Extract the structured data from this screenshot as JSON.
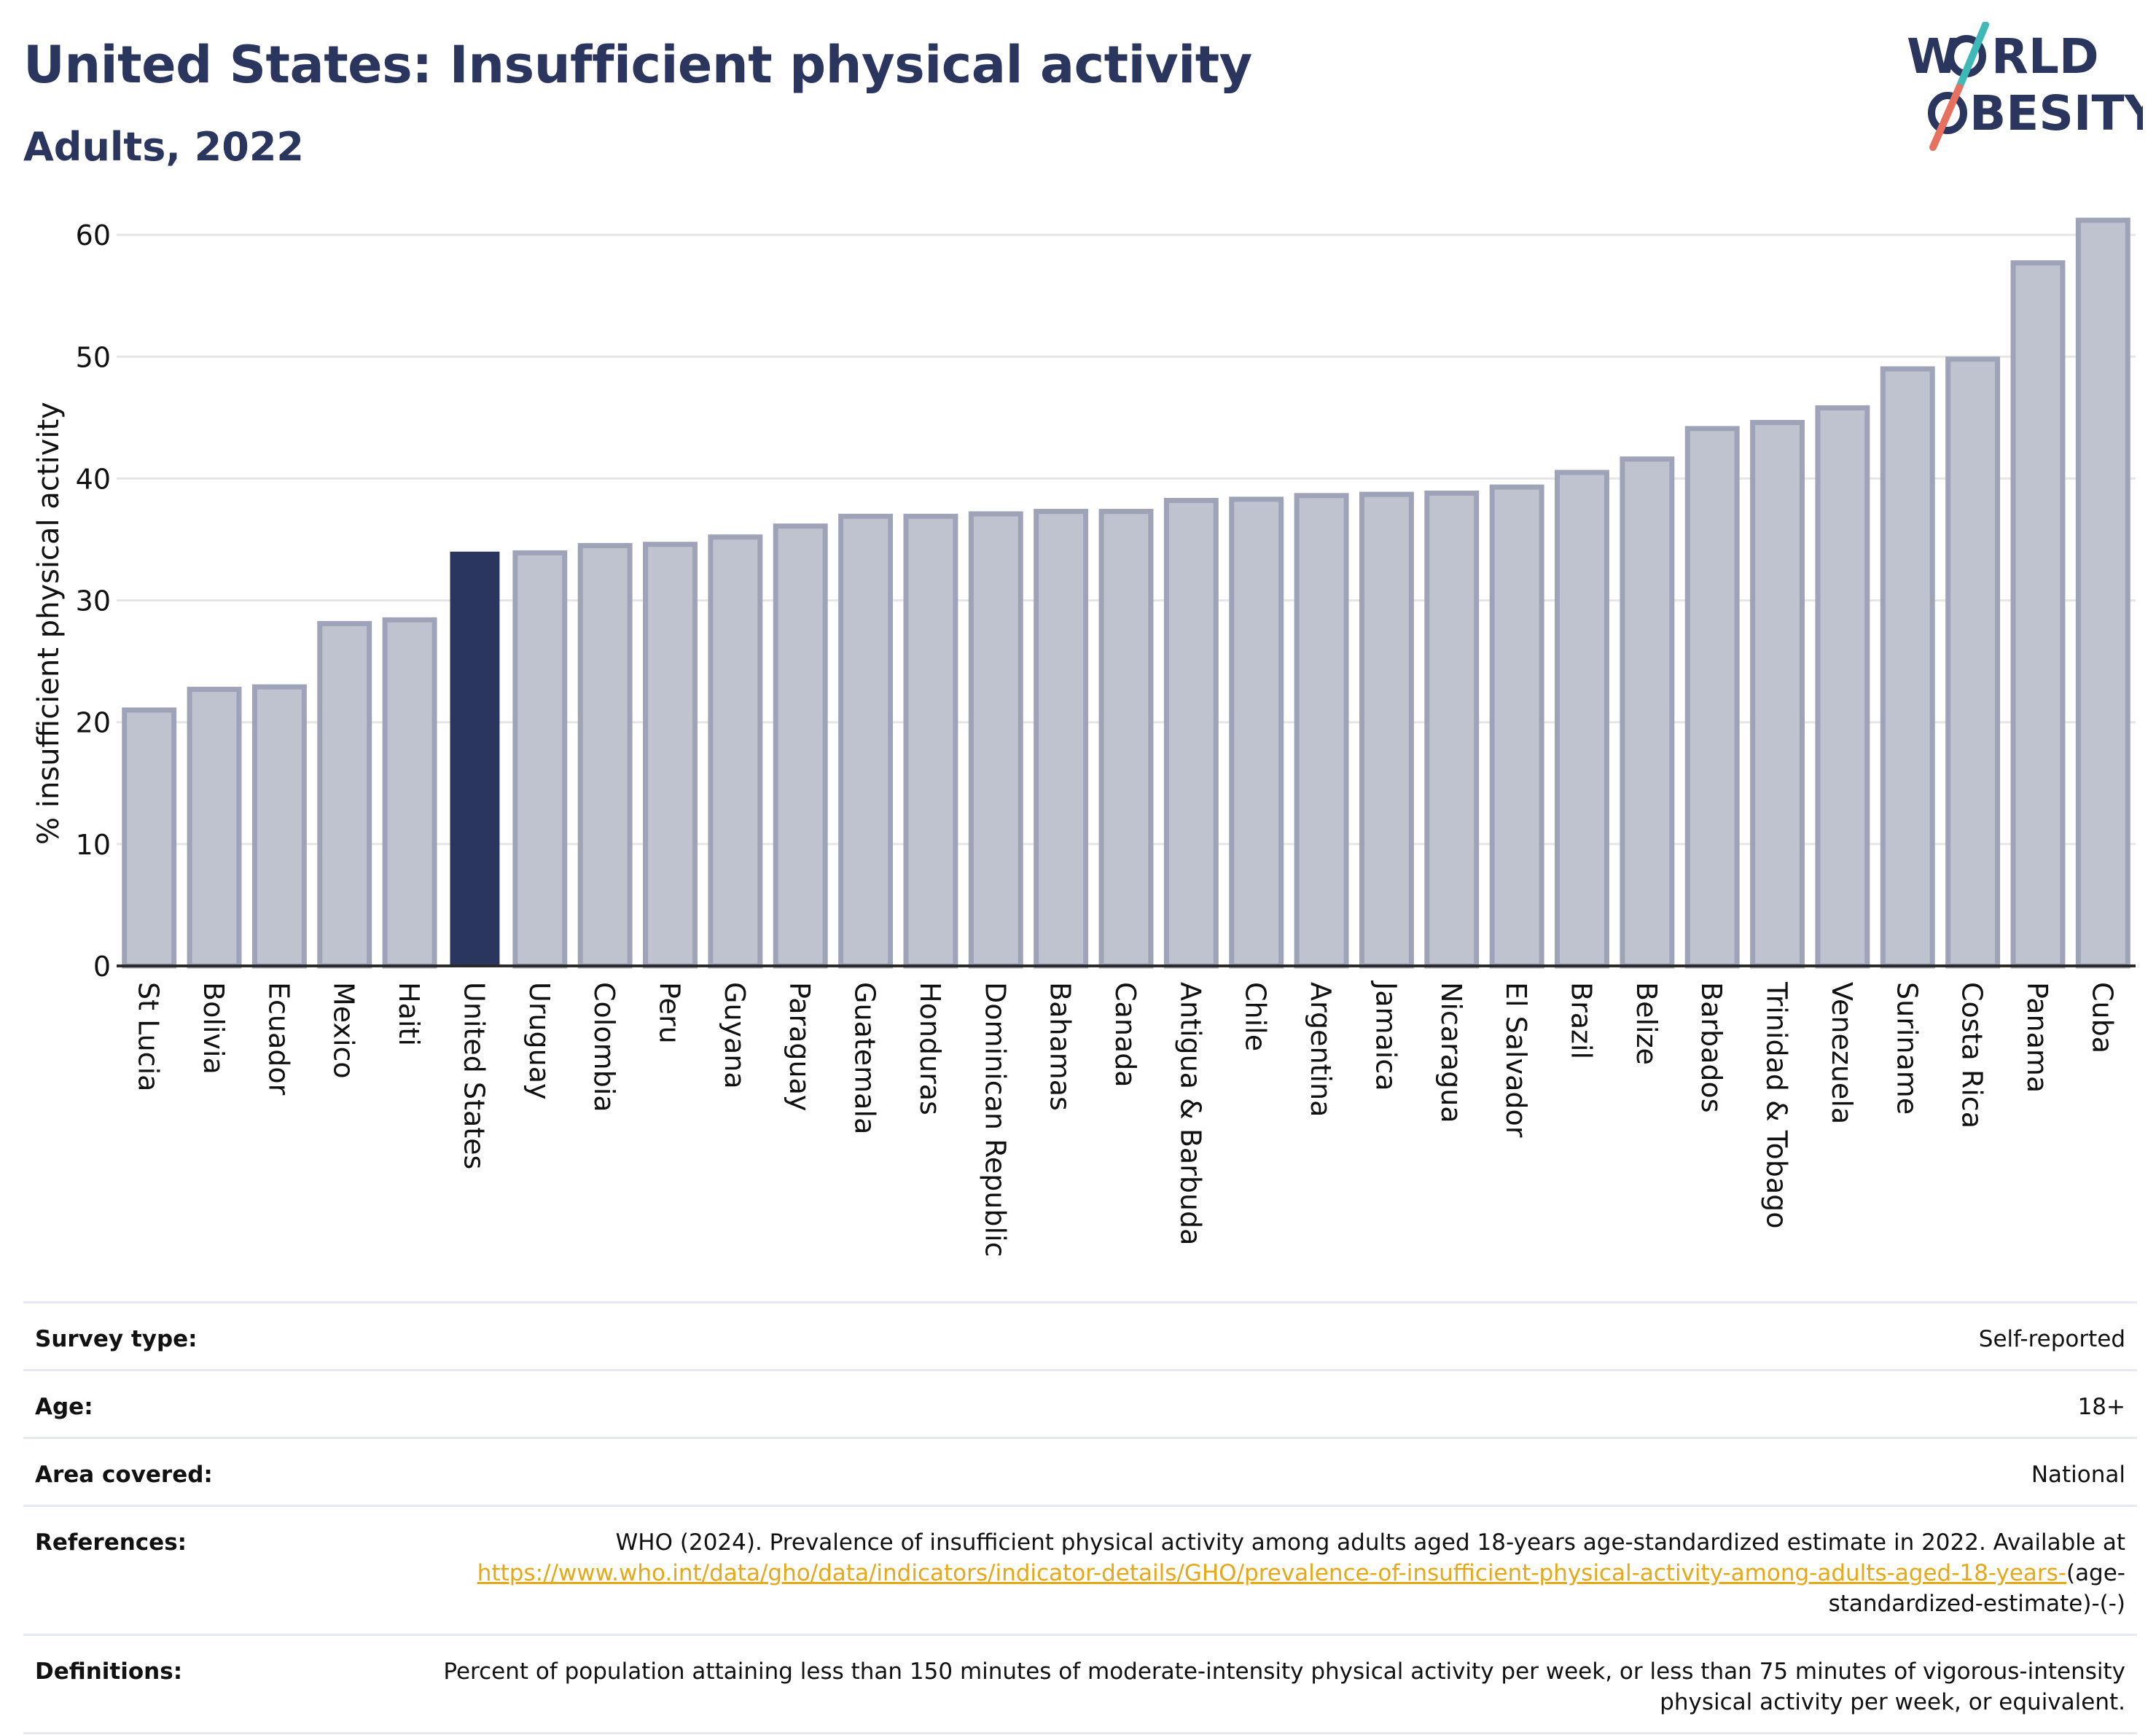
{
  "header": {
    "title": "United States: Insufficient physical activity",
    "subtitle": "Adults, 2022"
  },
  "logo": {
    "line1_left": "W",
    "line1_right": "RLD",
    "line2": "BESITY",
    "colors": {
      "text": "#2b365e",
      "slash_top": "#3fb8b8",
      "slash_bottom": "#e8705e"
    }
  },
  "chart_data": {
    "type": "bar",
    "ylabel": "% insufficient physical activity",
    "ylim": [
      0,
      63
    ],
    "yticks": [
      0,
      10,
      20,
      30,
      40,
      50,
      60
    ],
    "grid": true,
    "highlight": "United States",
    "colors": {
      "bar": "#bfc2cf",
      "bar_edge": "#9ea3b8",
      "highlight": "#2b365e"
    },
    "categories": [
      "St Lucia",
      "Bolivia",
      "Ecuador",
      "Mexico",
      "Haiti",
      "United States",
      "Uruguay",
      "Colombia",
      "Peru",
      "Guyana",
      "Paraguay",
      "Guatemala",
      "Honduras",
      "Dominican Republic",
      "Bahamas",
      "Canada",
      "Antigua & Barbuda",
      "Chile",
      "Argentina",
      "Jamaica",
      "Nicaragua",
      "El Salvador",
      "Brazil",
      "Belize",
      "Barbados",
      "Trinidad & Tobago",
      "Venezuela",
      "Suriname",
      "Costa Rica",
      "Panama",
      "Cuba"
    ],
    "values": [
      21.0,
      22.7,
      22.9,
      28.1,
      28.4,
      34.0,
      33.9,
      34.5,
      34.6,
      35.2,
      36.1,
      36.9,
      36.9,
      37.1,
      37.3,
      37.3,
      38.2,
      38.3,
      38.6,
      38.7,
      38.8,
      39.3,
      40.5,
      41.6,
      44.1,
      44.6,
      45.8,
      49.0,
      49.8,
      57.7,
      61.2
    ]
  },
  "meta": [
    {
      "label": "Survey type:",
      "value": "Self-reported"
    },
    {
      "label": "Age:",
      "value": "18+"
    },
    {
      "label": "Area covered:",
      "value": "National"
    },
    {
      "label": "References:",
      "value": "WHO (2024). Prevalence of insufficient physical activity among adults aged 18-years age-standardized estimate in 2022. Available at",
      "link": "https://www.who.int/data/gho/data/indicators/indicator-details/GHO/prevalence-of-insufficient-physical-activity-among-adults-aged-18-years-",
      "suffix": "(age-standardized-estimate)-(-)"
    },
    {
      "label": "Definitions:",
      "value": "Percent of population attaining less than 150 minutes of moderate-intensity physical activity per week, or less than 75 minutes of vigorous-intensity physical activity per week, or equivalent."
    }
  ]
}
